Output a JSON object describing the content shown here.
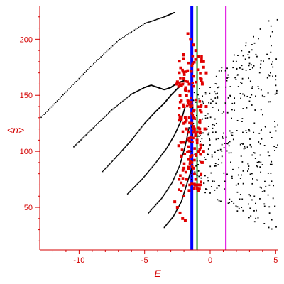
{
  "chart_data": {
    "type": "scatter",
    "title": "",
    "xlabel": "E",
    "ylabel": "<n>",
    "xlim": [
      -13,
      5.2
    ],
    "ylim": [
      12,
      230
    ],
    "xticks": [
      -10,
      -5,
      0,
      5
    ],
    "yticks": [
      50,
      100,
      150,
      200
    ],
    "grid": false,
    "colors": {
      "axis": "#d40000",
      "series_black": "#000000",
      "series_red": "#e00000",
      "line_blue": "#0000ff",
      "line_green": "#008000",
      "line_magenta": "#e000e0"
    },
    "series": [
      {
        "color": "black",
        "marker": "dot",
        "curves": [
          {
            "x": [
              -13.0,
              -11.0,
              -9.0,
              -7.0,
              -5.0,
              -3.5,
              -2.7
            ],
            "y": [
              129,
              153,
              177,
              199,
              214,
              220,
              224
            ]
          },
          {
            "x": [
              -10.4,
              -9.0,
              -7.5,
              -6.0,
              -5.0,
              -4.5,
              -4.0,
              -3.5,
              -3.0,
              -2.5,
              -2.0,
              -1.8
            ],
            "y": [
              104,
              120,
              137,
              151,
              157,
              159,
              157,
              155,
              157,
              161,
              163,
              163
            ]
          },
          {
            "x": [
              -8.2,
              -7.0,
              -6.0,
              -5.0,
              -4.2,
              -3.5,
              -3.0,
              -2.5,
              -2.0
            ],
            "y": [
              82,
              97,
              110,
              125,
              135,
              143,
              150,
              156,
              161
            ]
          },
          {
            "x": [
              -6.3,
              -5.2,
              -4.2,
              -3.3,
              -2.7,
              -2.2,
              -1.9
            ],
            "y": [
              62,
              75,
              89,
              103,
              115,
              128,
              140
            ]
          },
          {
            "x": [
              -4.7,
              -3.7,
              -2.9,
              -2.3,
              -1.9,
              -1.6
            ],
            "y": [
              45,
              58,
              72,
              88,
              105,
              122
            ]
          },
          {
            "x": [
              -3.5,
              -2.8,
              -2.2,
              -1.8,
              -1.4
            ],
            "y": [
              32,
              42,
              55,
              70,
              85
            ]
          }
        ],
        "scatter_region": {
          "x": [
            -1.5,
            5.2
          ],
          "y": [
            30,
            228
          ]
        }
      },
      {
        "color": "red",
        "marker": "square",
        "x": [
          -2.6,
          -2.5,
          -2.4,
          -2.3,
          -2.2,
          -2.1,
          -2.0,
          -2.0,
          -1.9,
          -1.9,
          -1.8,
          -1.8,
          -1.7,
          -1.7,
          -1.6,
          -1.6,
          -1.5,
          -1.5,
          -1.4,
          -1.4,
          -1.3,
          -1.3,
          -1.2,
          -1.2,
          -1.1,
          -1.1,
          -1.0,
          -1.0,
          -0.9,
          -0.9,
          -0.8,
          -0.8,
          -0.7,
          -0.7,
          -0.6,
          -0.6,
          -0.5,
          -0.5,
          -0.4,
          -0.3,
          -2.4,
          -2.2,
          -2.0,
          -1.8,
          -1.6,
          -2.7,
          -2.5,
          -2.3,
          -2.1,
          -1.9,
          -1.7,
          -1.5,
          -1.3,
          -1.1,
          -0.9,
          -0.7,
          -0.5,
          -0.3,
          -2.3,
          -2.0
        ],
        "y": [
          160,
          162,
          158,
          150,
          145,
          160,
          165,
          140,
          130,
          155,
          120,
          150,
          110,
          145,
          100,
          160,
          95,
          140,
          90,
          125,
          85,
          130,
          80,
          120,
          75,
          115,
          70,
          110,
          65,
          100,
          70,
          120,
          80,
          140,
          90,
          160,
          100,
          180,
          120,
          140,
          105,
          95,
          85,
          75,
          65,
          55,
          50,
          45,
          40,
          38,
          205,
          200,
          195,
          190,
          185,
          180,
          175,
          170,
          130,
          125
        ]
      },
      {
        "type": "vline",
        "color": "blue",
        "x": -1.4,
        "width": "thick"
      },
      {
        "type": "vline",
        "color": "green",
        "x": -1.0,
        "width": "thin"
      },
      {
        "type": "vline",
        "color": "magenta",
        "x": 1.2,
        "width": "thin"
      }
    ]
  }
}
